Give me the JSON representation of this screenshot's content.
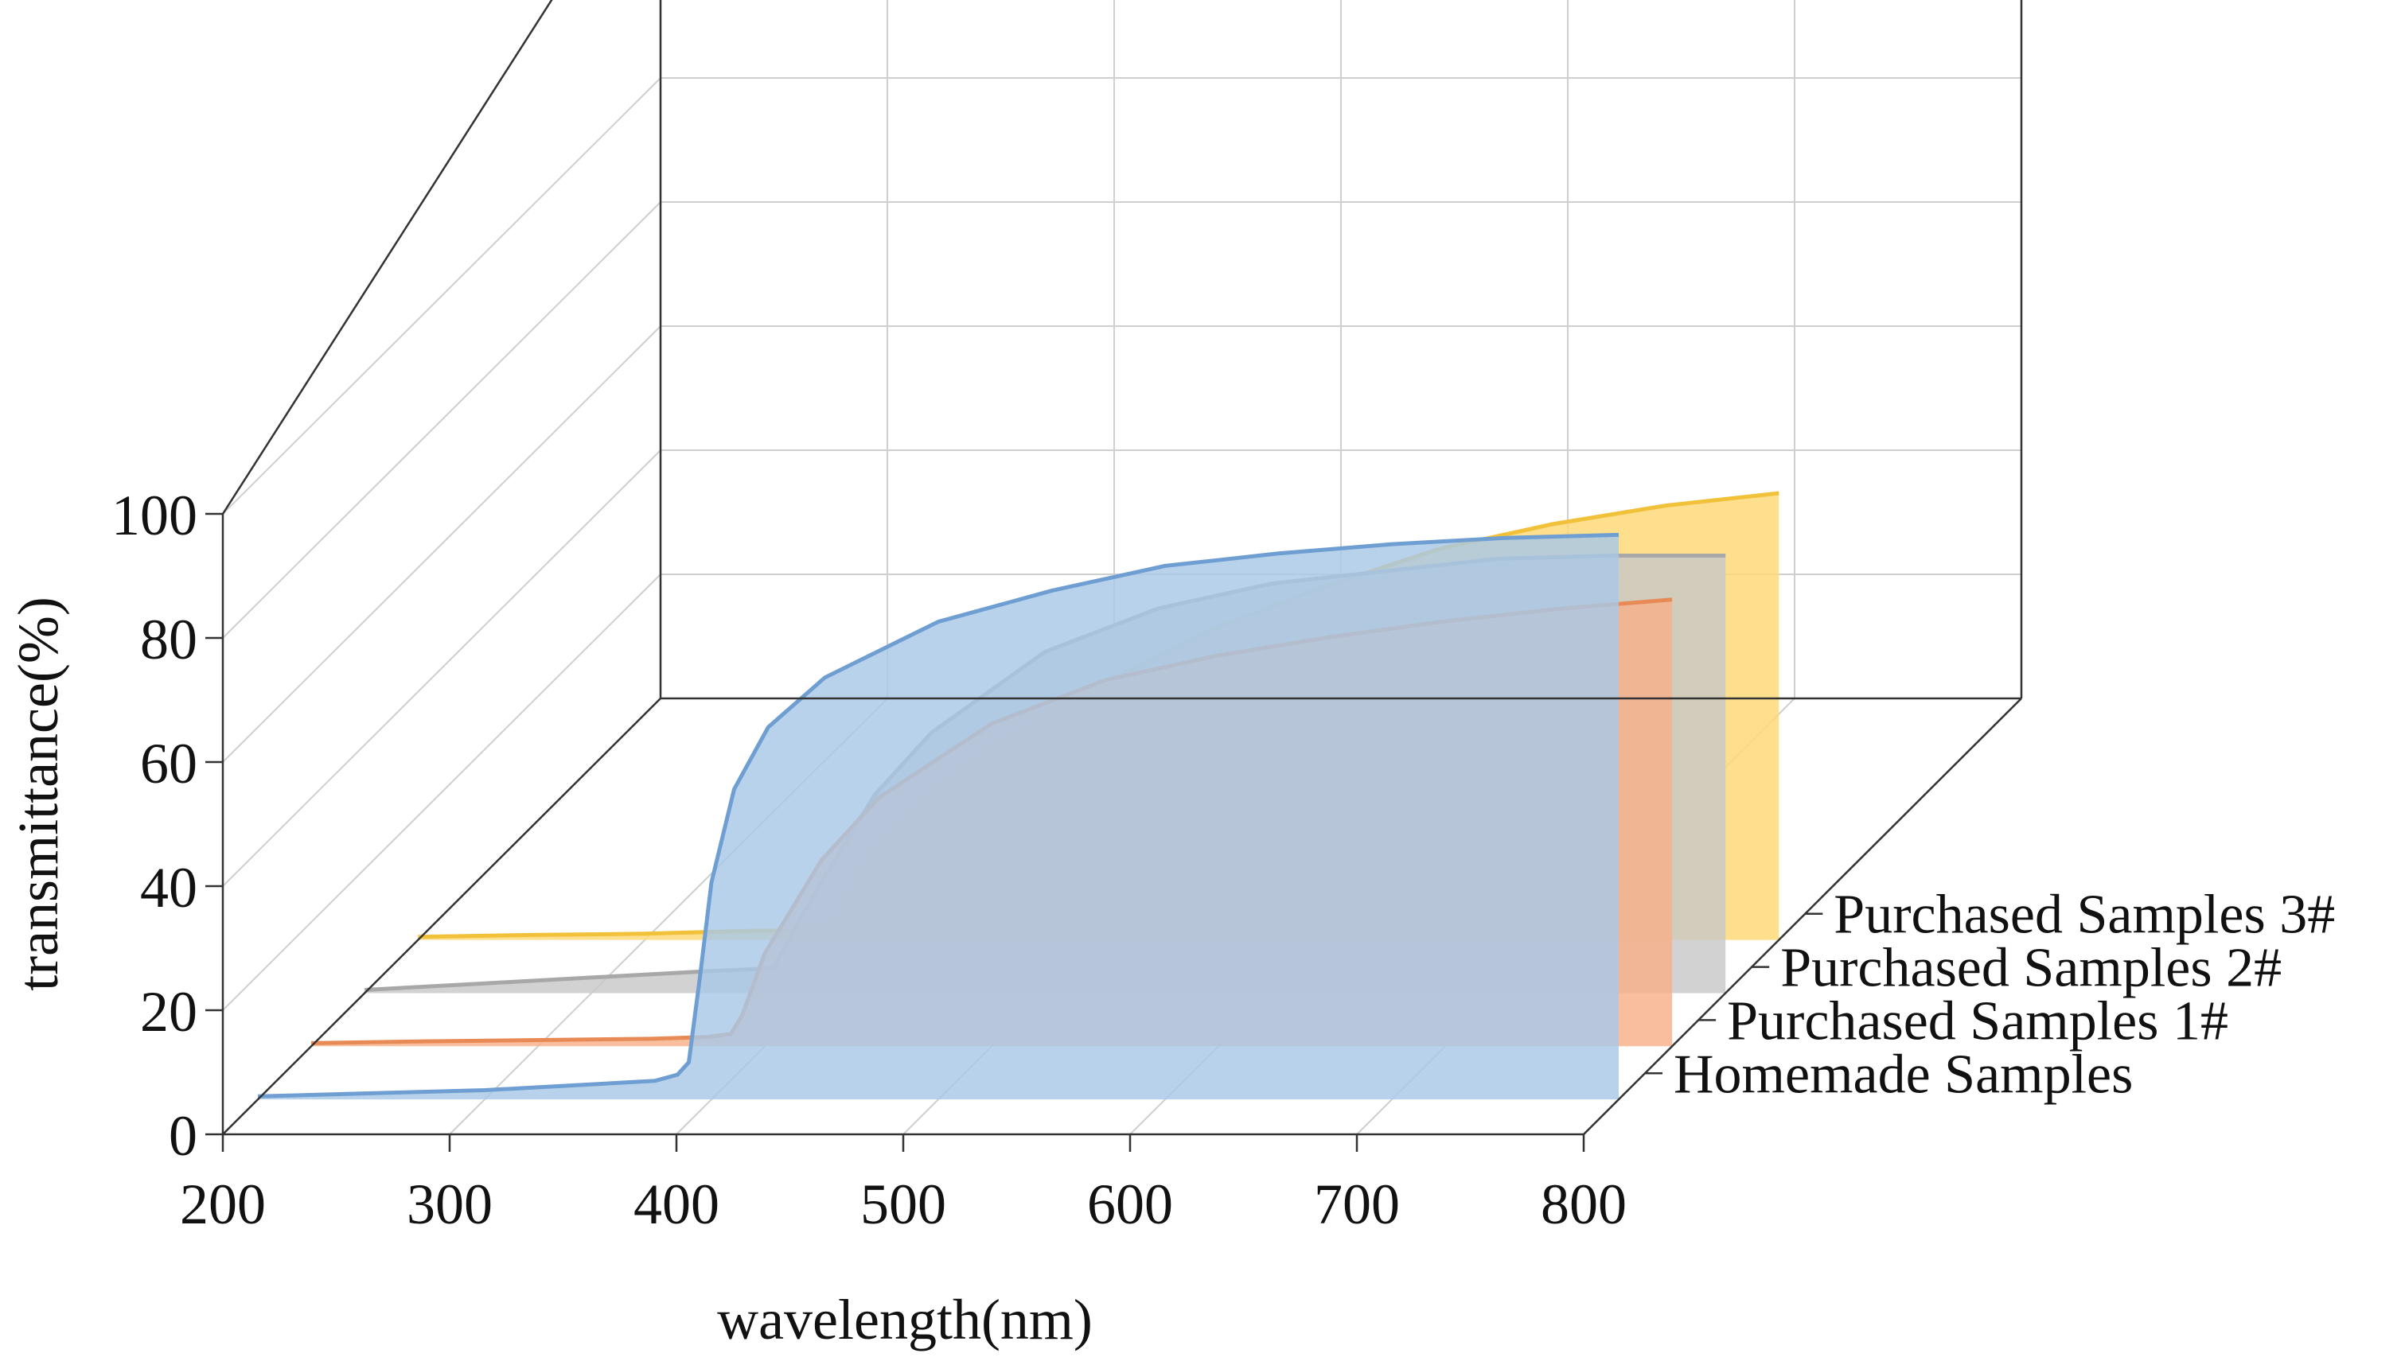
{
  "chart_data": {
    "type": "area",
    "projection": "3d-waterfall",
    "xlabel": "wavelength(nm)",
    "ylabel": "transmittance(%)",
    "xlim": [
      200,
      800
    ],
    "ylim": [
      0,
      100
    ],
    "x_ticks": [
      "200",
      "300",
      "400",
      "500",
      "600",
      "700",
      "800"
    ],
    "y_ticks": [
      "0",
      "20",
      "40",
      "60",
      "80",
      "100"
    ],
    "grid": true,
    "series": [
      {
        "name": "Homemade Samples",
        "color": "#a8c8e8",
        "line_color": "#6f9fd2",
        "x": [
          200,
          250,
          300,
          350,
          375,
          385,
          390,
          395,
          400,
          410,
          425,
          450,
          500,
          550,
          600,
          650,
          700,
          750,
          800
        ],
        "y": [
          0.5,
          1.0,
          1.5,
          2.5,
          3.0,
          4.0,
          6.0,
          20.0,
          35.0,
          50.0,
          60.0,
          68.0,
          77.0,
          82.0,
          86.0,
          88.0,
          89.5,
          90.5,
          91.0
        ]
      },
      {
        "name": "Purchased Samples 1#",
        "color": "#f7b089",
        "line_color": "#e88a55",
        "x": [
          200,
          250,
          300,
          350,
          375,
          385,
          390,
          400,
          425,
          450,
          500,
          550,
          600,
          650,
          700,
          750,
          800
        ],
        "y": [
          0.5,
          0.8,
          1.0,
          1.2,
          1.5,
          2.0,
          5.0,
          15.0,
          30.0,
          40.0,
          52.0,
          59.0,
          63.0,
          66.0,
          68.5,
          70.5,
          72.0
        ]
      },
      {
        "name": "Purchased Samples 2#",
        "color": "#c8c8c8",
        "line_color": "#a8a8a8",
        "x": [
          200,
          250,
          300,
          350,
          380,
          400,
          425,
          450,
          500,
          550,
          600,
          650,
          700,
          750,
          800
        ],
        "y": [
          0.5,
          1.5,
          2.5,
          3.5,
          4.0,
          17.0,
          32.0,
          42.0,
          55.0,
          62.0,
          66.0,
          68.0,
          70.0,
          70.5,
          70.5
        ]
      },
      {
        "name": "Purchased Samples 3#",
        "color": "#fcd874",
        "line_color": "#f2c13a",
        "x": [
          200,
          250,
          300,
          350,
          375,
          385,
          400,
          425,
          450,
          500,
          550,
          600,
          650,
          700,
          750,
          800
        ],
        "y": [
          0.5,
          0.8,
          1.0,
          1.5,
          1.5,
          2.5,
          14.0,
          23.0,
          30.0,
          41.0,
          50.0,
          57.0,
          63.0,
          67.0,
          70.0,
          72.0
        ]
      }
    ]
  }
}
